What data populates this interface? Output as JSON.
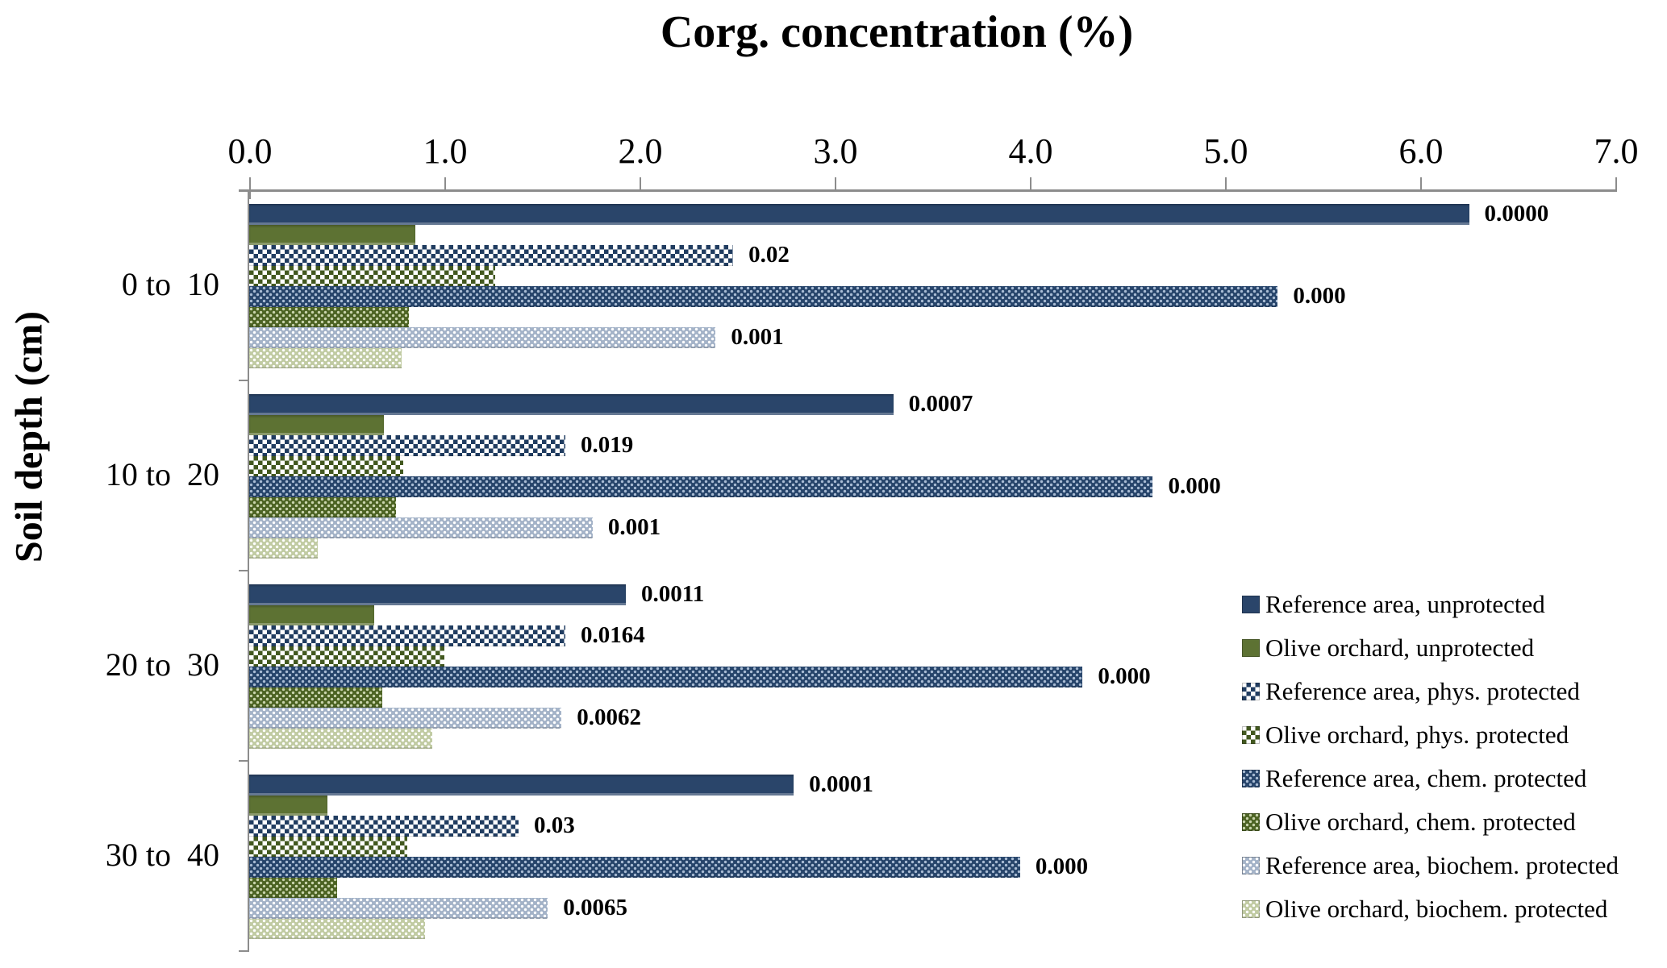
{
  "title": "Corg. concentration (%)",
  "y_axis_title": "Soil depth (cm)",
  "colors": {
    "background": "#FFFFFF",
    "axis": "#8C8C8C",
    "text": "#000000"
  },
  "chart_data": {
    "type": "bar",
    "orientation": "horizontal",
    "title": "Corg. concentration (%)",
    "xlabel": "Corg. concentration (%)",
    "ylabel": "Soil depth (cm)",
    "xlim": [
      0.0,
      7.0
    ],
    "x_tick_labels": [
      "0.0",
      "1.0",
      "2.0",
      "3.0",
      "4.0",
      "5.0",
      "6.0",
      "7.0"
    ],
    "grid": false,
    "legend_position": "right-bottom",
    "categories": [
      "0 to  10",
      "10 to  20",
      "20 to  30",
      "30 to  40"
    ],
    "series": [
      {
        "name": "Reference area, unprotected",
        "pattern": "solid",
        "color": "#2A456A",
        "dot_color": "",
        "values": [
          6.25,
          3.3,
          1.93,
          2.79
        ],
        "bar_labels": [
          "0.0000",
          "0.0007",
          "0.0011",
          "0.0001"
        ]
      },
      {
        "name": "Olive orchard, unprotected",
        "pattern": "solid",
        "color": "#5D7233",
        "dot_color": "",
        "values": [
          0.85,
          0.69,
          0.64,
          0.4
        ],
        "bar_labels": [
          "",
          "",
          "",
          ""
        ]
      },
      {
        "name": "Reference area, phys. protected",
        "pattern": "checker",
        "color": "#203C60",
        "dot_color": "#FFFFFF",
        "values": [
          2.48,
          1.62,
          1.62,
          1.38
        ],
        "bar_labels": [
          "0.02",
          "0.019",
          "0.0164",
          "0.03"
        ]
      },
      {
        "name": "Olive orchard, phys. protected",
        "pattern": "checker",
        "color": "#42581F",
        "dot_color": "#FFFFFF",
        "values": [
          1.26,
          0.79,
          1.0,
          0.81
        ],
        "bar_labels": [
          "",
          "",
          "",
          ""
        ]
      },
      {
        "name": "Reference area, chem. protected",
        "pattern": "dots",
        "color": "#27456B",
        "dot_color": "#A9BCD4",
        "values": [
          5.27,
          4.63,
          4.27,
          3.95
        ],
        "bar_labels": [
          "0.000",
          "0.000",
          "0.000",
          "0.000"
        ]
      },
      {
        "name": "Olive orchard, chem. protected",
        "pattern": "dots",
        "color": "#4C6323",
        "dot_color": "#C9D4AC",
        "values": [
          0.82,
          0.75,
          0.68,
          0.45
        ],
        "bar_labels": [
          "",
          "",
          "",
          ""
        ]
      },
      {
        "name": "Reference area, biochem. protected",
        "pattern": "dots",
        "color": "#A4B3C8",
        "dot_color": "#FFFFFF",
        "values": [
          2.39,
          1.76,
          1.6,
          1.53
        ],
        "bar_labels": [
          "0.001",
          "0.001",
          "0.0062",
          "0.0065"
        ]
      },
      {
        "name": "Olive orchard, biochem. protected",
        "pattern": "dots",
        "color": "#C1CBA3",
        "dot_color": "#FFFFFF",
        "values": [
          0.78,
          0.35,
          0.94,
          0.9
        ],
        "bar_labels": [
          "",
          "",
          "",
          ""
        ]
      }
    ]
  }
}
